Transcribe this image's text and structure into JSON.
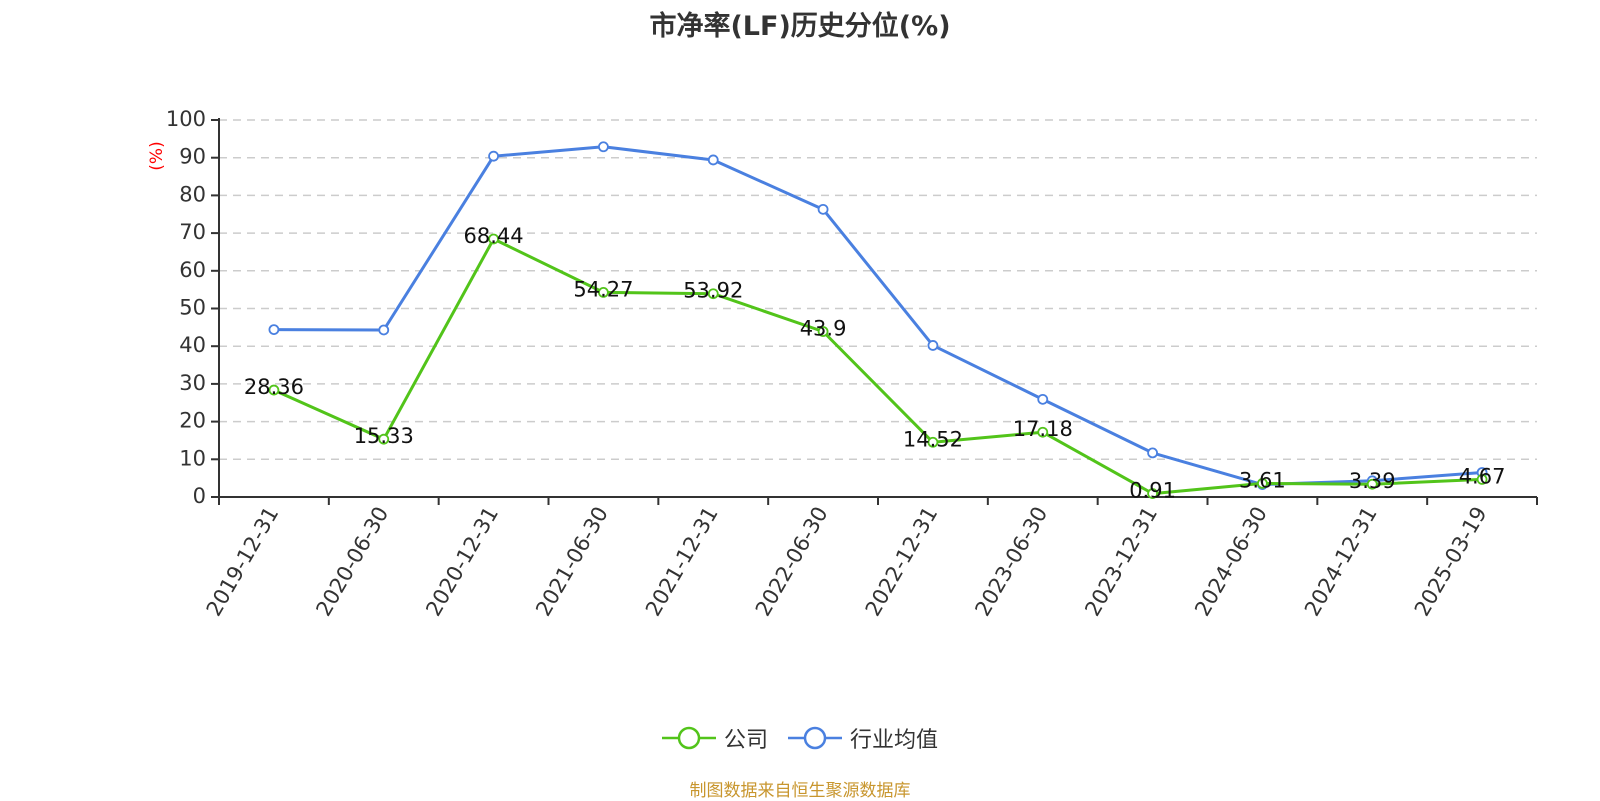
{
  "title": "市净率(LF)历史分位(%)",
  "footer": "制图数据来自恒生聚源数据库",
  "colors": {
    "company": "#52c41a",
    "industry": "#4a80e0",
    "axis": "#333333",
    "grid": "#cccccc",
    "unit_label": "#ff0000",
    "footer": "#c8962e"
  },
  "legend": [
    {
      "name": "公司",
      "color": "#52c41a"
    },
    {
      "name": "行业均值",
      "color": "#4a80e0"
    }
  ],
  "chart_data": {
    "type": "line",
    "title": "市净率(LF)历史分位(%)",
    "xlabel": "",
    "ylabel": "(%)",
    "ylim": [
      0,
      100
    ],
    "yticks": [
      0,
      10,
      20,
      30,
      40,
      50,
      60,
      70,
      80,
      90,
      100
    ],
    "grid": true,
    "legend_position": "bottom",
    "categories": [
      "2019-12-31",
      "2020-06-30",
      "2020-12-31",
      "2021-06-30",
      "2021-12-31",
      "2022-06-30",
      "2022-12-31",
      "2023-06-30",
      "2023-12-31",
      "2024-06-30",
      "2024-12-31",
      "2025-03-19"
    ],
    "series": [
      {
        "name": "公司",
        "values": [
          28.36,
          15.33,
          68.44,
          54.27,
          53.92,
          43.9,
          14.52,
          17.18,
          0.91,
          3.61,
          3.39,
          4.67
        ],
        "labels": true
      },
      {
        "name": "行业均值",
        "values": [
          44.4,
          44.3,
          90.4,
          92.9,
          89.4,
          76.3,
          40.2,
          25.9,
          11.7,
          3.3,
          4.3,
          6.5
        ],
        "labels": false
      }
    ]
  }
}
